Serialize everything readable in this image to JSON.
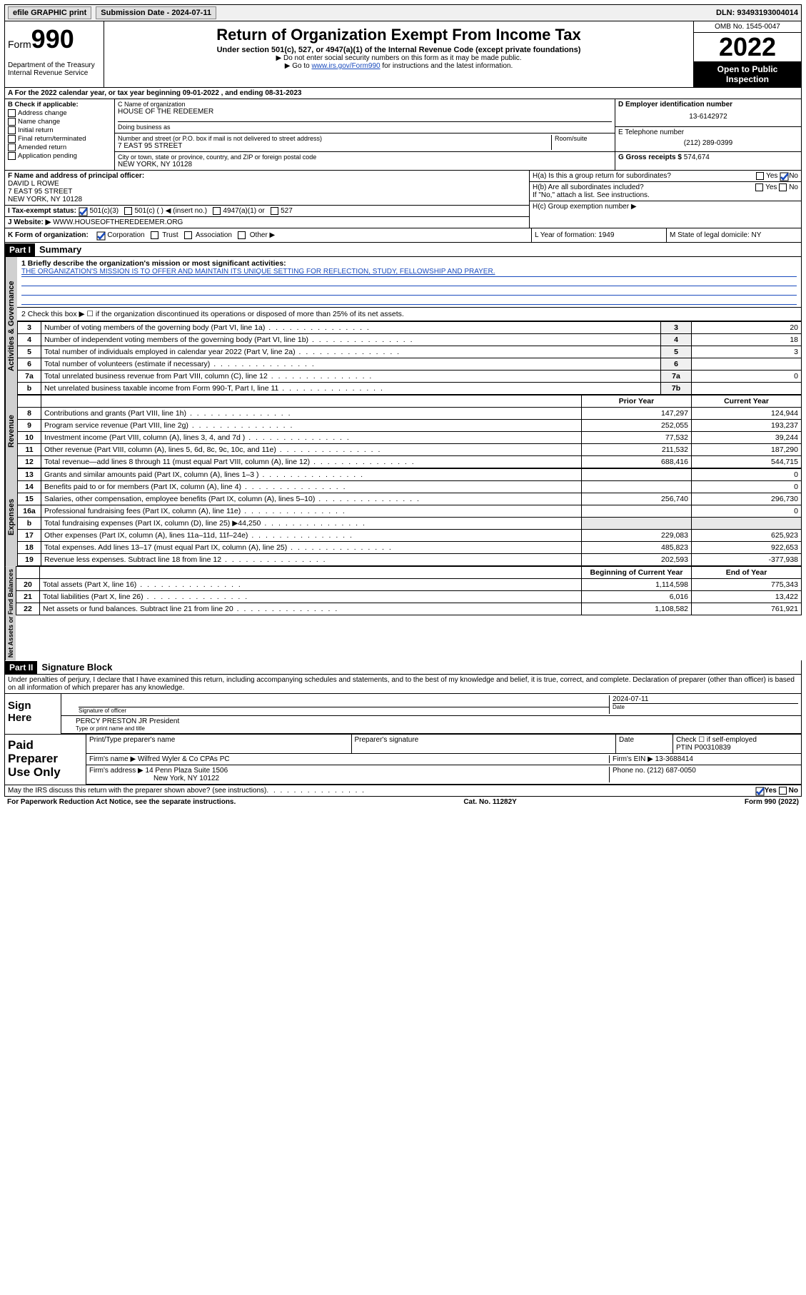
{
  "top_bar": {
    "efile": "efile GRAPHIC print",
    "submission": "Submission Date - 2024-07-11",
    "dln": "DLN: 93493193004014"
  },
  "header": {
    "form_label": "Form",
    "form_num": "990",
    "title": "Return of Organization Exempt From Income Tax",
    "subtitle": "Under section 501(c), 527, or 4947(a)(1) of the Internal Revenue Code (except private foundations)",
    "note1": "▶ Do not enter social security numbers on this form as it may be made public.",
    "note2_pre": "▶ Go to ",
    "note2_link": "www.irs.gov/Form990",
    "note2_post": " for instructions and the latest information.",
    "omb": "OMB No. 1545-0047",
    "year": "2022",
    "inspect": "Open to Public Inspection",
    "dept": "Department of the Treasury\nInternal Revenue Service"
  },
  "row_a": "A For the 2022 calendar year, or tax year beginning 09-01-2022   , and ending 08-31-2023",
  "section_b": {
    "title": "B Check if applicable:",
    "opts": [
      "Address change",
      "Name change",
      "Initial return",
      "Final return/terminated",
      "Amended return",
      "Application pending"
    ]
  },
  "section_c": {
    "label_name": "C Name of organization",
    "name": "HOUSE OF THE REDEEMER",
    "dba_label": "Doing business as",
    "dba": "",
    "addr_label": "Number and street (or P.O. box if mail is not delivered to street address)",
    "room_label": "Room/suite",
    "addr": "7 EAST 95 STREET",
    "city_label": "City or town, state or province, country, and ZIP or foreign postal code",
    "city": "NEW YORK, NY  10128"
  },
  "section_de": {
    "d_label": "D Employer identification number",
    "d_val": "13-6142972",
    "e_label": "E Telephone number",
    "e_val": "(212) 289-0399",
    "g_label": "G Gross receipts $",
    "g_val": "574,674"
  },
  "section_f": {
    "label": "F Name and address of principal officer:",
    "name": "DAVID L ROWE",
    "addr1": "7 EAST 95 STREET",
    "addr2": "NEW YORK, NY  10128"
  },
  "section_h": {
    "ha": "H(a)  Is this a group return for subordinates?",
    "ha_yes": "Yes",
    "ha_no": "No",
    "hb": "H(b)  Are all subordinates included?",
    "hb_yes": "Yes",
    "hb_no": "No",
    "hb_note": "If \"No,\" attach a list. See instructions.",
    "hc": "H(c)  Group exemption number ▶"
  },
  "section_i": {
    "label": "I   Tax-exempt status:",
    "opt1": "501(c)(3)",
    "opt2": "501(c) (  ) ◀ (insert no.)",
    "opt3": "4947(a)(1) or",
    "opt4": "527"
  },
  "section_j": {
    "label": "J   Website: ▶",
    "val": "WWW.HOUSEOFTHEREDEEMER.ORG"
  },
  "row_k": {
    "label": "K Form of organization:",
    "opts": [
      "Corporation",
      "Trust",
      "Association",
      "Other ▶"
    ],
    "l": "L Year of formation: 1949",
    "m": "M State of legal domicile: NY"
  },
  "part1": {
    "hdr": "Part I",
    "title": "Summary",
    "tab_gov": "Activities & Governance",
    "tab_rev": "Revenue",
    "tab_exp": "Expenses",
    "tab_net": "Net Assets or Fund Balances",
    "l1_label": "1  Briefly describe the organization's mission or most significant activities:",
    "l1_mission": "THE ORGANIZATION'S MISSION IS TO OFFER AND MAINTAIN ITS UNIQUE SETTING FOR REFLECTION, STUDY, FELLOWSHIP AND PRAYER.",
    "l2": "2   Check this box ▶ ☐  if the organization discontinued its operations or disposed of more than 25% of its net assets.",
    "rows_gov": [
      {
        "n": "3",
        "desc": "Number of voting members of the governing body (Part VI, line 1a)",
        "box": "3",
        "val": "20"
      },
      {
        "n": "4",
        "desc": "Number of independent voting members of the governing body (Part VI, line 1b)",
        "box": "4",
        "val": "18"
      },
      {
        "n": "5",
        "desc": "Total number of individuals employed in calendar year 2022 (Part V, line 2a)",
        "box": "5",
        "val": "3"
      },
      {
        "n": "6",
        "desc": "Total number of volunteers (estimate if necessary)",
        "box": "6",
        "val": ""
      },
      {
        "n": "7a",
        "desc": "Total unrelated business revenue from Part VIII, column (C), line 12",
        "box": "7a",
        "val": "0"
      },
      {
        "n": "b",
        "desc": "Net unrelated business taxable income from Form 990-T, Part I, line 11",
        "box": "7b",
        "val": ""
      }
    ],
    "hdr_prior": "Prior Year",
    "hdr_curr": "Current Year",
    "rows_rev": [
      {
        "n": "8",
        "desc": "Contributions and grants (Part VIII, line 1h)",
        "p": "147,297",
        "c": "124,944"
      },
      {
        "n": "9",
        "desc": "Program service revenue (Part VIII, line 2g)",
        "p": "252,055",
        "c": "193,237"
      },
      {
        "n": "10",
        "desc": "Investment income (Part VIII, column (A), lines 3, 4, and 7d )",
        "p": "77,532",
        "c": "39,244"
      },
      {
        "n": "11",
        "desc": "Other revenue (Part VIII, column (A), lines 5, 6d, 8c, 9c, 10c, and 11e)",
        "p": "211,532",
        "c": "187,290"
      },
      {
        "n": "12",
        "desc": "Total revenue—add lines 8 through 11 (must equal Part VIII, column (A), line 12)",
        "p": "688,416",
        "c": "544,715"
      }
    ],
    "rows_exp": [
      {
        "n": "13",
        "desc": "Grants and similar amounts paid (Part IX, column (A), lines 1–3 )",
        "p": "",
        "c": "0"
      },
      {
        "n": "14",
        "desc": "Benefits paid to or for members (Part IX, column (A), line 4)",
        "p": "",
        "c": "0"
      },
      {
        "n": "15",
        "desc": "Salaries, other compensation, employee benefits (Part IX, column (A), lines 5–10)",
        "p": "256,740",
        "c": "296,730"
      },
      {
        "n": "16a",
        "desc": "Professional fundraising fees (Part IX, column (A), line 11e)",
        "p": "",
        "c": "0"
      },
      {
        "n": "b",
        "desc": "Total fundraising expenses (Part IX, column (D), line 25) ▶44,250",
        "p": "SHADE",
        "c": "SHADE"
      },
      {
        "n": "17",
        "desc": "Other expenses (Part IX, column (A), lines 11a–11d, 11f–24e)",
        "p": "229,083",
        "c": "625,923"
      },
      {
        "n": "18",
        "desc": "Total expenses. Add lines 13–17 (must equal Part IX, column (A), line 25)",
        "p": "485,823",
        "c": "922,653"
      },
      {
        "n": "19",
        "desc": "Revenue less expenses. Subtract line 18 from line 12",
        "p": "202,593",
        "c": "-377,938"
      }
    ],
    "hdr_beg": "Beginning of Current Year",
    "hdr_end": "End of Year",
    "rows_net": [
      {
        "n": "20",
        "desc": "Total assets (Part X, line 16)",
        "p": "1,114,598",
        "c": "775,343"
      },
      {
        "n": "21",
        "desc": "Total liabilities (Part X, line 26)",
        "p": "6,016",
        "c": "13,422"
      },
      {
        "n": "22",
        "desc": "Net assets or fund balances. Subtract line 21 from line 20",
        "p": "1,108,582",
        "c": "761,921"
      }
    ]
  },
  "part2": {
    "hdr": "Part II",
    "title": "Signature Block",
    "decl": "Under penalties of perjury, I declare that I have examined this return, including accompanying schedules and statements, and to the best of my knowledge and belief, it is true, correct, and complete. Declaration of preparer (other than officer) is based on all information of which preparer has any knowledge.",
    "sign_here": "Sign Here",
    "sig_officer": "Signature of officer",
    "sig_date_label": "Date",
    "sig_date": "2024-07-11",
    "officer_name": "PERCY PRESTON JR President",
    "officer_label": "Type or print name and title",
    "paid_label": "Paid Preparer Use Only",
    "prep_name_label": "Print/Type preparer's name",
    "prep_sig_label": "Preparer's signature",
    "prep_date_label": "Date",
    "prep_check": "Check ☐ if self-employed",
    "ptin_label": "PTIN",
    "ptin": "P00310839",
    "firm_name_label": "Firm's name    ▶",
    "firm_name": "Wilfred Wyler & Co CPAs PC",
    "firm_ein_label": "Firm's EIN ▶",
    "firm_ein": "13-3688414",
    "firm_addr_label": "Firm's address ▶",
    "firm_addr1": "14 Penn Plaza Suite 1506",
    "firm_addr2": "New York, NY  10122",
    "phone_label": "Phone no.",
    "phone": "(212) 687-0050",
    "discuss": "May the IRS discuss this return with the preparer shown above? (see instructions)",
    "discuss_yes": "Yes",
    "discuss_no": "No"
  },
  "footer": {
    "pra": "For Paperwork Reduction Act Notice, see the separate instructions.",
    "cat": "Cat. No. 11282Y",
    "form": "Form 990 (2022)"
  }
}
